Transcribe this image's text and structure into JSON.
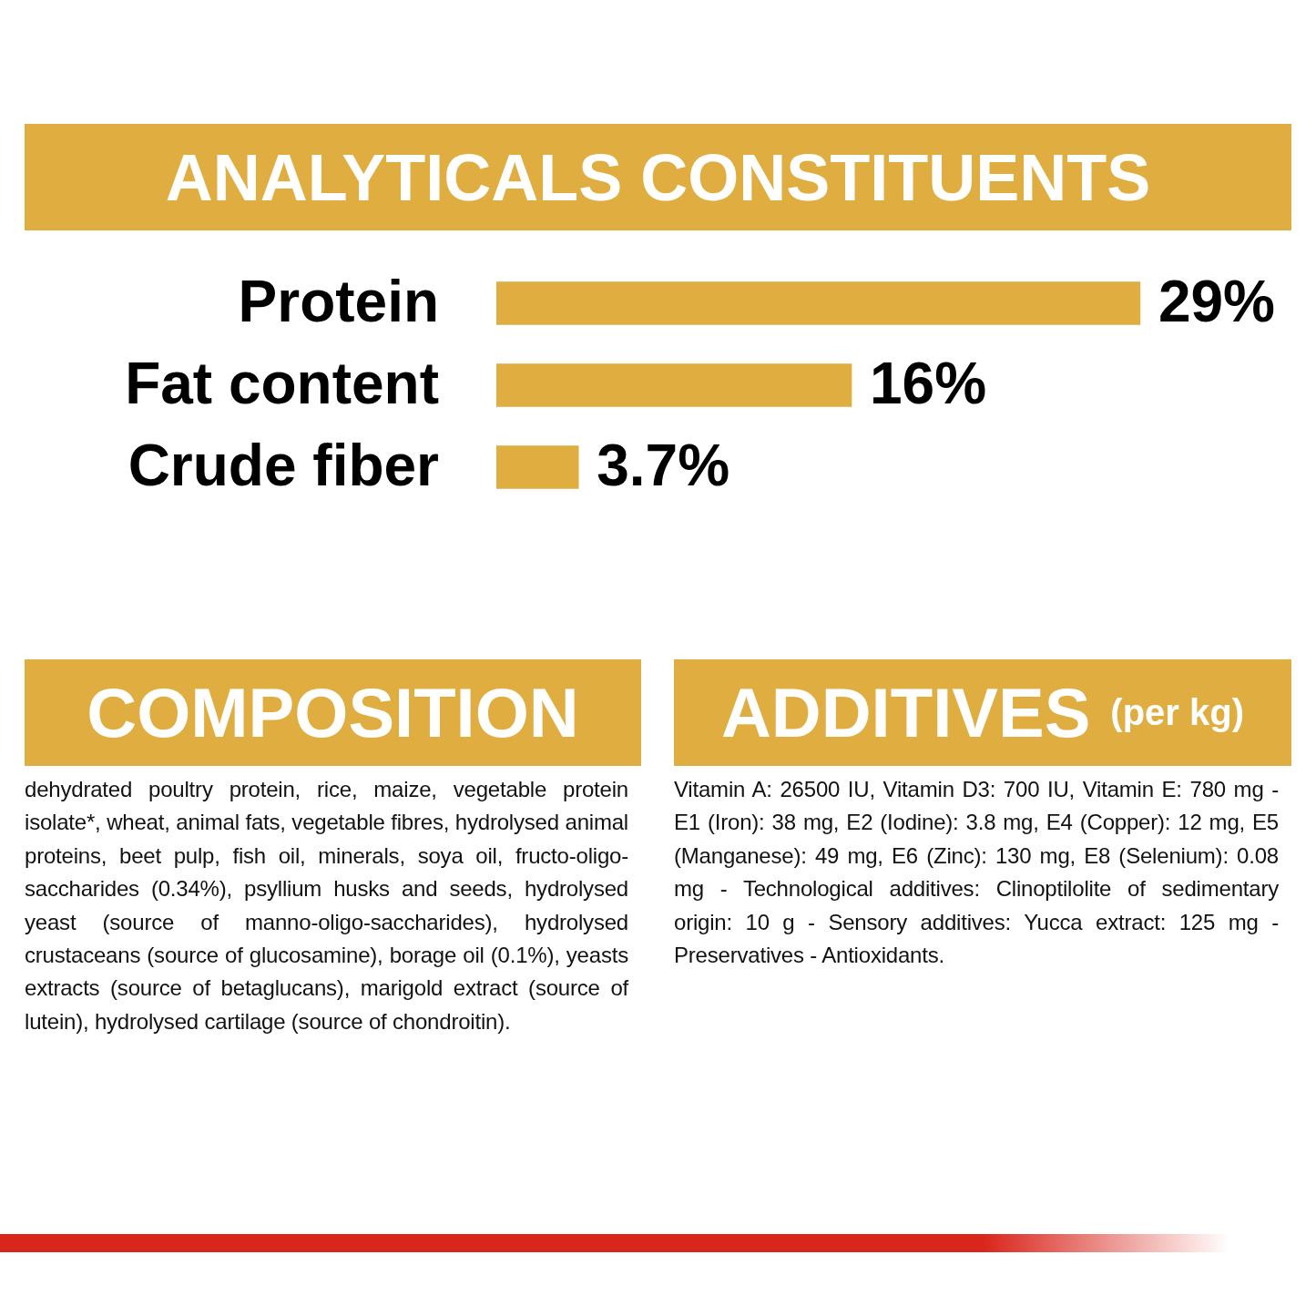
{
  "chart_data": [
    {
      "type": "bar",
      "title": "ANALYTICALS CONSTITUENTS",
      "orientation": "horizontal",
      "categories": [
        "Protein",
        "Fat content",
        "Crude fiber"
      ],
      "values": [
        29,
        16,
        3.7
      ],
      "value_labels": [
        "29%",
        "16%",
        "3.7%"
      ],
      "color": "#e0ad40"
    },
    {
      "type": "other",
      "title": "COMPOSITION",
      "annotations": [
        "dehydrated poultry protein, rice, maize, vegetable protein isolate*, wheat, animal fats, vegetable fibres, hydrolysed animal proteins, beet pulp, fish oil, minerals, soya oil, fructo-oligo-saccharides (0.34%), psyllium husks and seeds, hydrolysed yeast (source of manno-oligo-saccharides), hydrolysed crustaceans (source of glucosamine), borage oil (0.1%), yeasts extracts (source of betaglucans), marigold extract (source of lutein), hydrolysed cartilage (source of chondroitin)."
      ]
    },
    {
      "type": "other",
      "title": "ADDITIVES",
      "subtitle": "(per kg)",
      "annotations": [
        "Vitamin A: 26500 IU, Vitamin D3: 700 IU, Vitamin E: 780 mg - E1 (Iron): 38 mg, E2 (Iodine): 3.8 mg, E4 (Copper): 12 mg, E5 (Manganese): 49 mg, E6 (Zinc): 130 mg, E8 (Selenium): 0.08 mg - Technological additives: Clinoptilolite of sedimentary origin: 10 g - Sensory additives: Yucca extract: 125 mg - Preservatives - Antioxidants."
      ]
    }
  ]
}
